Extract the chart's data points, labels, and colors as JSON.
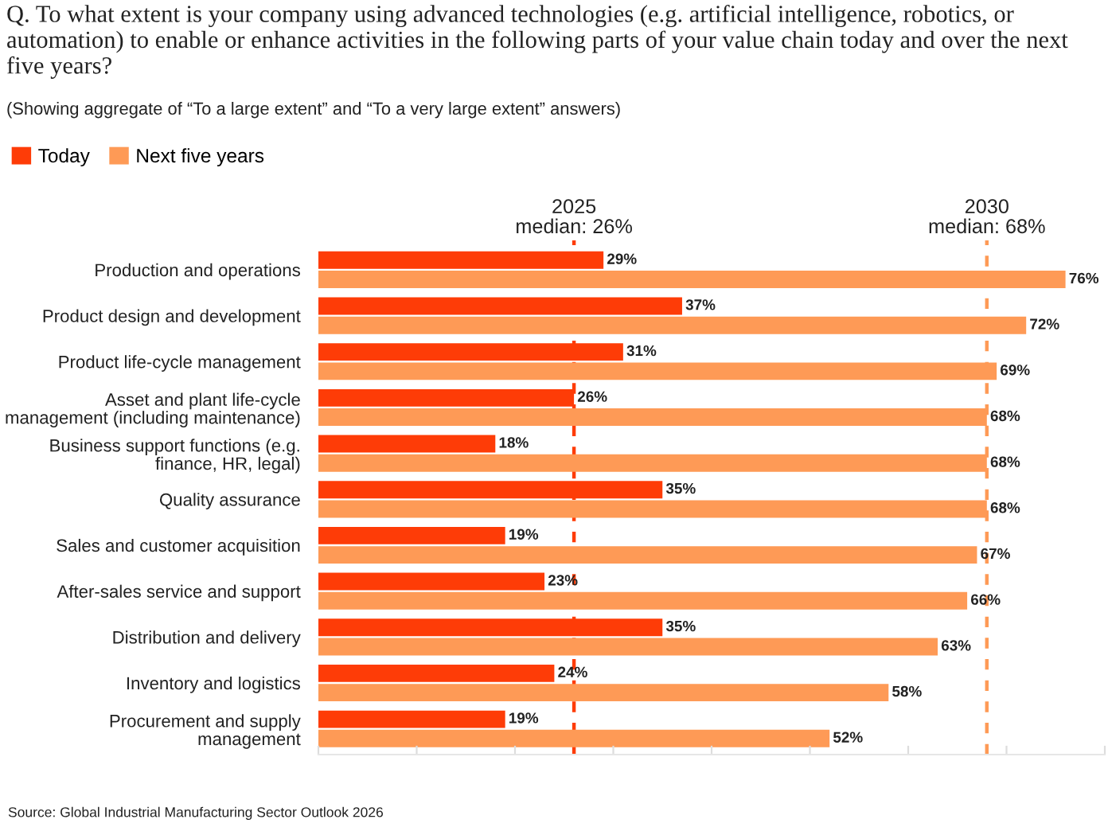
{
  "chart_data": {
    "type": "bar",
    "orientation": "horizontal",
    "title": "Q. To what extent is your company using advanced technologies (e.g. artificial intelligence, robotics, or\nautomation) to enable or enhance activities in the following parts of your value chain today and over the next\nfive years?",
    "subtitle": "(Showing aggregate of “To a large extent” and “To a very large extent” answers)",
    "categories": [
      "Production and operations",
      "Product design and development",
      "Product life-cycle management",
      "Asset and plant life-cycle\nmanagement (including maintenance)",
      "Business support functions (e.g.\nfinance, HR, legal)",
      "Quality assurance",
      "Sales and customer acquisition",
      "After-sales service and support",
      "Distribution and delivery",
      "Inventory and logistics",
      "Procurement and supply\nmanagement"
    ],
    "series": [
      {
        "name": "Today",
        "color": "#fe3c07",
        "values": [
          29,
          37,
          31,
          26,
          18,
          35,
          19,
          23,
          35,
          24,
          19
        ],
        "value_labels": [
          "29%",
          "37%",
          "31%",
          "26%",
          "18%",
          "35%",
          "19%",
          "23%",
          "35%",
          "24%",
          "19%"
        ]
      },
      {
        "name": "Next five years",
        "color": "#fe9a56",
        "values": [
          76,
          72,
          69,
          68,
          68,
          68,
          67,
          66,
          63,
          58,
          52
        ],
        "value_labels": [
          "76%",
          "72%",
          "69%",
          "68%",
          "68%",
          "68%",
          "67%",
          "66%",
          "63%",
          "58%",
          "52%"
        ]
      }
    ],
    "xlim": [
      0,
      80
    ],
    "xticks": [
      {
        "value": 0,
        "label": null
      },
      {
        "value": 10,
        "label": null
      },
      {
        "value": 20,
        "label": null
      },
      {
        "value": 30,
        "label": null
      },
      {
        "value": 40,
        "label": null
      },
      {
        "value": 50,
        "label": null
      },
      {
        "value": 60,
        "label": null
      },
      {
        "value": 70,
        "label": null
      },
      {
        "value": 80,
        "label": null
      }
    ],
    "ref_lines": [
      {
        "axis": "x",
        "value": 26,
        "label": "2025\nmedian: 26%",
        "color": "#fe3c07",
        "line_style": "dashed"
      },
      {
        "axis": "x",
        "value": 68,
        "label": "2030\nmedian: 68%",
        "color": "#fe9a56",
        "line_style": "dashed"
      }
    ],
    "legend": "top left",
    "tick_labels": "y",
    "annotations": [
      "Source: Global Industrial Manufacturing Sector Outlook 2026"
    ]
  }
}
